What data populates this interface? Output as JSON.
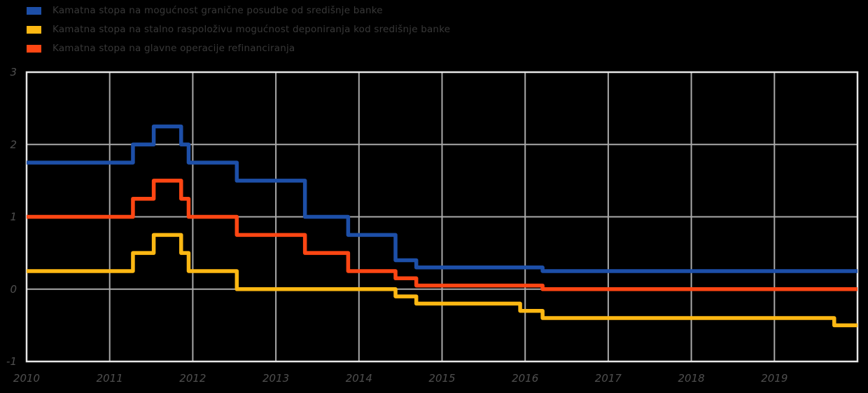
{
  "colors": {
    "background": "#000000",
    "grid": "#a9a9a9",
    "frame": "#e6e6e6",
    "tick_label": "#4f4f4f",
    "legend_text": "#383838",
    "blue": "#1d4fa8",
    "yellow": "#fdb813",
    "orange": "#ff4613"
  },
  "legend": {
    "items": [
      {
        "label": "Kamatna stopa na mogućnost granične posudbe od središnje banke",
        "color": "#1d4fa8",
        "series": "marginal_lending_facility"
      },
      {
        "label": "Kamatna stopa na stalno raspoloživu mogućnost deponiranja kod središnje banke",
        "color": "#fdb813",
        "series": "deposit_facility"
      },
      {
        "label": "Kamatna stopa na glavne operacije refinanciranja",
        "color": "#ff4613",
        "series": "main_refinancing_operations"
      }
    ]
  },
  "chart_data": {
    "type": "line",
    "style": "step-after",
    "title": "",
    "xlabel": "",
    "ylabel": "",
    "grid": true,
    "legend_position": "top-left",
    "x_range": [
      2010,
      2020
    ],
    "y_range": [
      -1,
      3
    ],
    "x_ticks": [
      2010,
      2011,
      2012,
      2013,
      2014,
      2015,
      2016,
      2017,
      2018,
      2019
    ],
    "y_ticks": [
      3,
      2,
      1,
      0,
      -1
    ],
    "unit": "percent",
    "series": [
      {
        "name": "Kamatna stopa na mogućnost granične posudbe od središnje banke",
        "color": "#1d4fa8",
        "points": [
          [
            2010.0,
            1.75
          ],
          [
            2011.28,
            2.0
          ],
          [
            2011.53,
            2.25
          ],
          [
            2011.86,
            2.0
          ],
          [
            2011.95,
            1.75
          ],
          [
            2012.53,
            1.5
          ],
          [
            2013.35,
            1.0
          ],
          [
            2013.87,
            0.75
          ],
          [
            2014.44,
            0.4
          ],
          [
            2014.69,
            0.3
          ],
          [
            2016.21,
            0.25
          ]
        ],
        "end_x": 2020
      },
      {
        "name": "Kamatna stopa na stalno raspoloživu mogućnost deponiranja kod središnje banke",
        "color": "#fdb813",
        "points": [
          [
            2010.0,
            0.25
          ],
          [
            2011.28,
            0.5
          ],
          [
            2011.53,
            0.75
          ],
          [
            2011.86,
            0.5
          ],
          [
            2011.95,
            0.25
          ],
          [
            2012.53,
            0.0
          ],
          [
            2014.44,
            -0.1
          ],
          [
            2014.69,
            -0.2
          ],
          [
            2015.94,
            -0.3
          ],
          [
            2016.21,
            -0.4
          ],
          [
            2019.72,
            -0.5
          ]
        ],
        "end_x": 2020
      },
      {
        "name": "Kamatna stopa na glavne operacije refinanciranja",
        "color": "#ff4613",
        "points": [
          [
            2010.0,
            1.0
          ],
          [
            2011.28,
            1.25
          ],
          [
            2011.53,
            1.5
          ],
          [
            2011.86,
            1.25
          ],
          [
            2011.95,
            1.0
          ],
          [
            2012.53,
            0.75
          ],
          [
            2013.35,
            0.5
          ],
          [
            2013.87,
            0.25
          ],
          [
            2014.44,
            0.15
          ],
          [
            2014.69,
            0.05
          ],
          [
            2016.21,
            0.0
          ]
        ],
        "end_x": 2020
      }
    ]
  }
}
